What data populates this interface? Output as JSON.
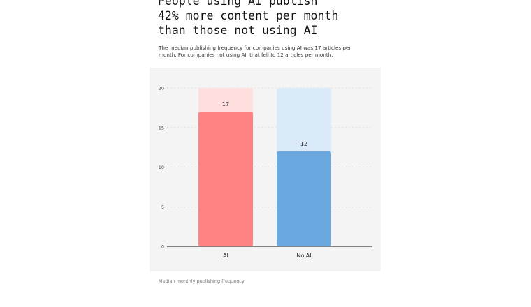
{
  "title_lines": [
    "People using AI publish",
    "42% more content per month",
    "than those not using AI"
  ],
  "subtitle": "The median publishing frequency for companies using AI was 17 articles per month. For companies not using AI, that fell to 12 articles per month.",
  "caption": "Median monthly publishing frequency",
  "colors": {
    "ai_bar": "#ff8383",
    "ai_track": "#ffdede",
    "no_ai_bar": "#6aa8e0",
    "no_ai_track": "#dbeaf8",
    "panel": "#f4f4f4"
  },
  "chart_data": {
    "type": "bar",
    "categories": [
      "AI",
      "No AI"
    ],
    "values": [
      17,
      12
    ],
    "data_labels": [
      "17",
      "12"
    ],
    "ylim": [
      0,
      20
    ],
    "yticks": [
      "0",
      "5",
      "10",
      "15",
      "20"
    ],
    "xlabel": "",
    "ylabel": "",
    "grid": true
  }
}
